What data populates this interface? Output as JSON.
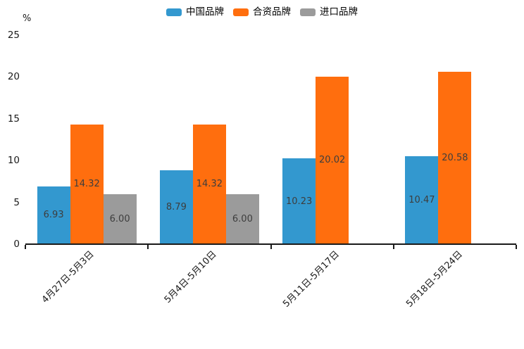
{
  "chart_data": {
    "type": "bar",
    "title": "",
    "ylabel": "%",
    "categories": [
      "4月27日-5月3日",
      "5月4日-5月10日",
      "5月11日-5月17日",
      "5月18日-5月24日"
    ],
    "series": [
      {
        "name": "中国品牌",
        "color": "#3398CF",
        "values": [
          6.93,
          8.79,
          10.23,
          10.47
        ]
      },
      {
        "name": "合资品牌",
        "color": "#FF6E0E",
        "values": [
          14.32,
          14.32,
          20.02,
          20.58
        ]
      },
      {
        "name": "进口品牌",
        "color": "#9B9B9B",
        "values": [
          6.0,
          6.0,
          null,
          null
        ]
      }
    ],
    "ylim": [
      0,
      25
    ],
    "yticks": [
      0,
      5,
      10,
      15,
      20,
      25
    ],
    "legend_position": "top",
    "grid": false,
    "bar_label_color": "#3d3d3d",
    "axis_color": "#1a1a1a",
    "background": "#ffffff"
  }
}
